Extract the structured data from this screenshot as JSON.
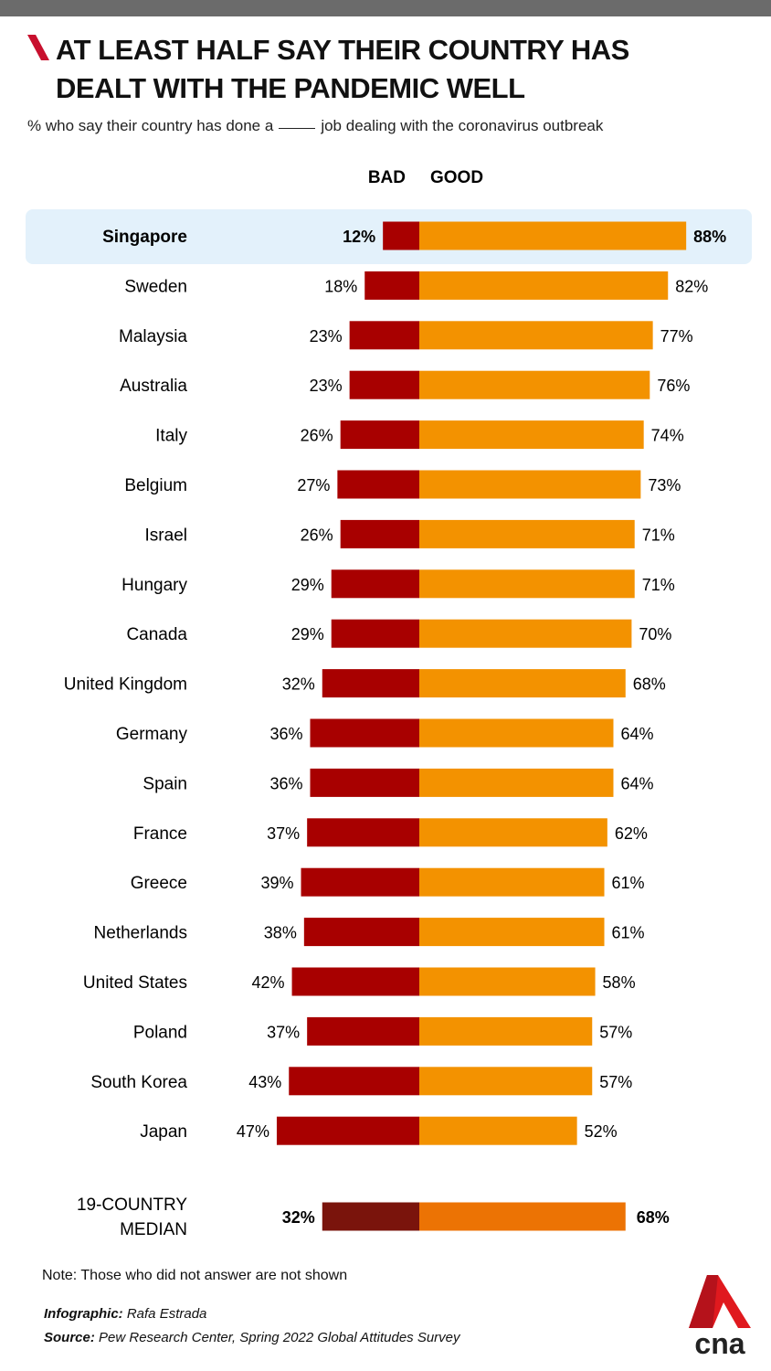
{
  "title_line1": "AT LEAST HALF SAY THEIR COUNTRY HAS",
  "title_line2": "DEALT WITH THE PANDEMIC WELL",
  "subtitle_before": "% who say their country has done a",
  "subtitle_after": "job dealing with the coronavirus outbreak",
  "note": "Note: Those who did not answer are not shown",
  "infographic_label": "Infographic:",
  "infographic_author": "Rafa Estrada",
  "source_label": "Source:",
  "source_text": "Pew Research Center, Spring 2022 Global Attitudes Survey",
  "logo_text": "cna",
  "chart_data": {
    "type": "bar",
    "orientation": "horizontal-diverging",
    "series": [
      {
        "name": "BAD",
        "color": "#a80000",
        "values": [
          12,
          18,
          23,
          23,
          26,
          27,
          26,
          29,
          29,
          32,
          36,
          36,
          37,
          39,
          38,
          42,
          37,
          43,
          47
        ]
      },
      {
        "name": "GOOD",
        "color": "#f39200",
        "values": [
          88,
          82,
          77,
          76,
          74,
          73,
          71,
          71,
          70,
          68,
          64,
          64,
          62,
          61,
          61,
          58,
          57,
          57,
          52
        ]
      }
    ],
    "categories": [
      "Singapore",
      "Sweden",
      "Malaysia",
      "Australia",
      "Italy",
      "Belgium",
      "Israel",
      "Hungary",
      "Canada",
      "United Kingdom",
      "Germany",
      "Spain",
      "France",
      "Greece",
      "Netherlands",
      "United States",
      "Poland",
      "South Korea",
      "Japan"
    ],
    "highlight": "Singapore",
    "highlight_color": "#e3f1fb",
    "median": {
      "label_line1": "19-COUNTRY",
      "label_line2": "MEDIAN",
      "bad": 32,
      "good": 68,
      "bad_color": "#7a140c",
      "good_color": "#ec7304"
    },
    "value_suffix": "%"
  }
}
